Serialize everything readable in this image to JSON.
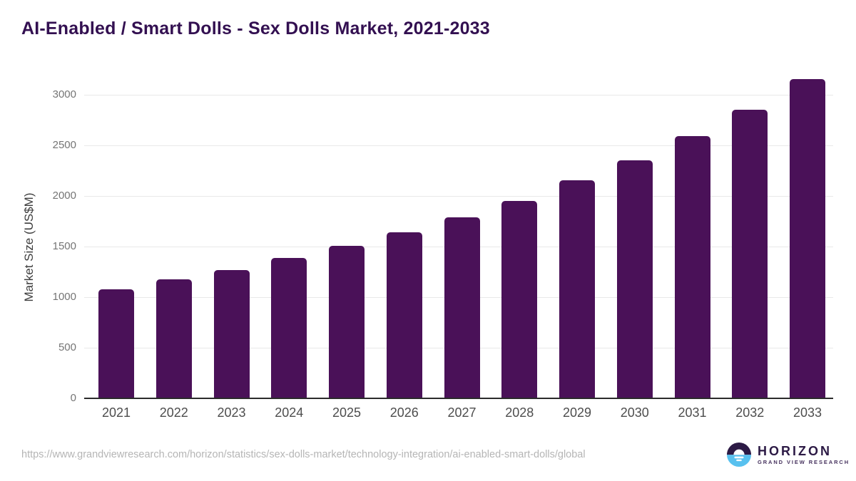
{
  "title": "AI-Enabled / Smart Dolls - Sex Dolls Market, 2021-2033",
  "chart_data": {
    "type": "bar",
    "title": "AI-Enabled / Smart Dolls - Sex Dolls Market, 2021-2033",
    "categories": [
      "2021",
      "2022",
      "2023",
      "2024",
      "2025",
      "2026",
      "2027",
      "2028",
      "2029",
      "2030",
      "2031",
      "2032",
      "2033"
    ],
    "values": [
      1080,
      1175,
      1272,
      1385,
      1505,
      1645,
      1790,
      1955,
      2155,
      2355,
      2590,
      2855,
      3155
    ],
    "xlabel": "",
    "ylabel": "Market Size (US$M)",
    "ylim": [
      0,
      3200
    ],
    "yticks": [
      0,
      500,
      1000,
      1500,
      2000,
      2500,
      3000
    ],
    "grid": "horizontal-only",
    "legend": "none",
    "bar_color": "#4a1158"
  },
  "colors": {
    "background": "#ffffff",
    "bar": "#4a1158",
    "title": "#331051",
    "y_tick_label": "#757575",
    "x_tick_label": "#4d4d4d",
    "axis_title": "#3d3d3d",
    "gridline": "#e9e9e9",
    "baseline": "#2b2b2b",
    "footer_url": "#b5b5b5",
    "logo_dark_purple": "#2c1a45",
    "logo_light_blue": "#58c1ef"
  },
  "footer": {
    "source_url": "https://www.grandviewresearch.com/horizon/statistics/sex-dolls-market/technology-integration/ai-enabled-smart-dolls/global",
    "logo": {
      "name": "HORIZON",
      "tagline": "GRAND VIEW RESEARCH",
      "icon": "horizon-sun-over-water-icon"
    }
  }
}
